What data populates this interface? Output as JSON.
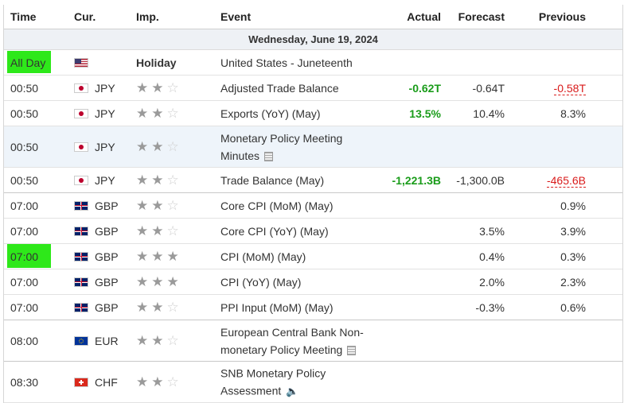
{
  "header": {
    "time": "Time",
    "currency": "Cur.",
    "importance": "Imp.",
    "event": "Event",
    "actual": "Actual",
    "forecast": "Forecast",
    "previous": "Previous"
  },
  "date_band": "Wednesday, June 19, 2024",
  "colors": {
    "actual_better": "#1a9c1a",
    "previous_worse": "#d91b1b",
    "highlight": "#2ee81a"
  },
  "rows": [
    {
      "time": "All Day",
      "flag": "us-flag-icon",
      "currency": "",
      "importance_label": "Holiday",
      "stars": 0,
      "event": "United States - Juneteenth",
      "actual": "",
      "forecast": "",
      "previous": ""
    },
    {
      "time": "00:50",
      "flag": "jp-flag-icon",
      "currency": "JPY",
      "stars": 2,
      "event": "Adjusted Trade Balance",
      "actual": "-0.62T",
      "forecast": "-0.64T",
      "previous": "-0.58T"
    },
    {
      "time": "00:50",
      "flag": "jp-flag-icon",
      "currency": "JPY",
      "stars": 2,
      "event": "Exports (YoY) (May)",
      "actual": "13.5%",
      "forecast": "10.4%",
      "previous": "8.3%"
    },
    {
      "time": "00:50",
      "flag": "jp-flag-icon",
      "currency": "JPY",
      "stars": 2,
      "event": "Monetary Policy Meeting Minutes",
      "actual": "",
      "forecast": "",
      "previous": ""
    },
    {
      "time": "00:50",
      "flag": "jp-flag-icon",
      "currency": "JPY",
      "stars": 2,
      "event": "Trade Balance (May)",
      "actual": "-1,221.3B",
      "forecast": "-1,300.0B",
      "previous": "-465.6B"
    },
    {
      "time": "07:00",
      "flag": "gb-flag-icon",
      "currency": "GBP",
      "stars": 2,
      "event": "Core CPI (MoM) (May)",
      "actual": "",
      "forecast": "",
      "previous": "0.9%"
    },
    {
      "time": "07:00",
      "flag": "gb-flag-icon",
      "currency": "GBP",
      "stars": 2,
      "event": "Core CPI (YoY) (May)",
      "actual": "",
      "forecast": "3.5%",
      "previous": "3.9%"
    },
    {
      "time": "07:00",
      "flag": "gb-flag-icon",
      "currency": "GBP",
      "stars": 3,
      "event": "CPI (MoM) (May)",
      "actual": "",
      "forecast": "0.4%",
      "previous": "0.3%"
    },
    {
      "time": "07:00",
      "flag": "gb-flag-icon",
      "currency": "GBP",
      "stars": 3,
      "event": "CPI (YoY) (May)",
      "actual": "",
      "forecast": "2.0%",
      "previous": "2.3%"
    },
    {
      "time": "07:00",
      "flag": "gb-flag-icon",
      "currency": "GBP",
      "stars": 2,
      "event": "PPI Input (MoM) (May)",
      "actual": "",
      "forecast": "-0.3%",
      "previous": "0.6%"
    },
    {
      "time": "08:00",
      "flag": "eu-flag-icon",
      "currency": "EUR",
      "stars": 2,
      "event": "European Central Bank Non-monetary Policy Meeting",
      "actual": "",
      "forecast": "",
      "previous": ""
    },
    {
      "time": "08:30",
      "flag": "ch-flag-icon",
      "currency": "CHF",
      "stars": 2,
      "event": "SNB Monetary Policy Assessment",
      "actual": "",
      "forecast": "",
      "previous": ""
    }
  ]
}
